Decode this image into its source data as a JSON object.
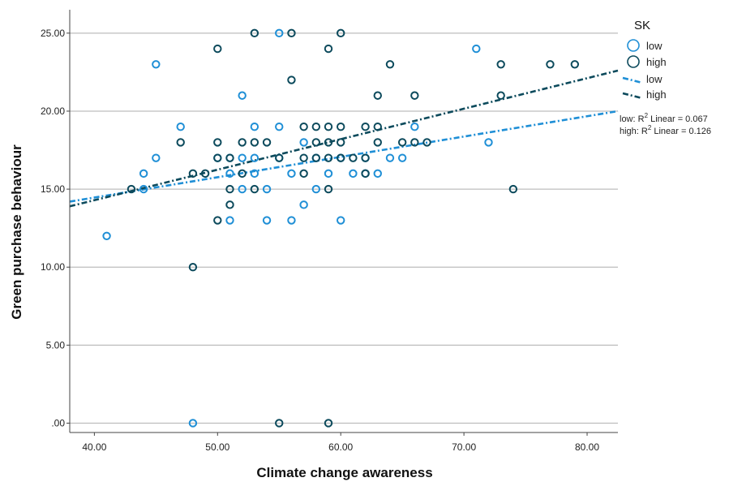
{
  "chart_data": {
    "type": "scatter",
    "xlabel": "Climate change awareness",
    "ylabel": "Green purchase behaviour",
    "xlim": [
      38,
      82.5
    ],
    "ylim": [
      -0.6,
      26.5
    ],
    "xticks": [
      "40.00",
      "50.00",
      "60.00",
      "70.00",
      "80.00"
    ],
    "xtick_values": [
      40,
      50,
      60,
      70,
      80
    ],
    "yticks": [
      ".00",
      "5.00",
      "10.00",
      "15.00",
      "20.00",
      "25.00"
    ],
    "ytick_values": [
      0,
      5,
      10,
      15,
      20,
      25
    ],
    "grid": "horizontal",
    "legend": {
      "title": "SK",
      "placement": "top-right",
      "items": [
        "low",
        "high",
        "low",
        "high"
      ]
    },
    "fit_labels": {
      "low": {
        "prefix": "low: R",
        "sup": "2",
        "suffix": " Linear = 0.067"
      },
      "high": {
        "prefix": "high: R",
        "sup": "2",
        "suffix": " Linear = 0.126"
      }
    },
    "series": [
      {
        "name": "low",
        "color": "#1f8fd6",
        "points": [
          [
            41,
            12
          ],
          [
            44,
            15
          ],
          [
            44,
            16
          ],
          [
            45,
            17
          ],
          [
            45,
            23
          ],
          [
            47,
            19
          ],
          [
            48,
            0
          ],
          [
            50,
            17
          ],
          [
            51,
            13
          ],
          [
            51,
            16
          ],
          [
            51,
            17
          ],
          [
            52,
            15
          ],
          [
            52,
            17
          ],
          [
            52,
            21
          ],
          [
            53,
            16
          ],
          [
            53,
            17
          ],
          [
            53,
            19
          ],
          [
            54,
            13
          ],
          [
            54,
            15
          ],
          [
            55,
            17
          ],
          [
            55,
            19
          ],
          [
            55,
            25
          ],
          [
            56,
            13
          ],
          [
            56,
            16
          ],
          [
            57,
            14
          ],
          [
            57,
            18
          ],
          [
            58,
            15
          ],
          [
            58,
            17
          ],
          [
            59,
            16
          ],
          [
            60,
            13
          ],
          [
            60,
            17
          ],
          [
            61,
            16
          ],
          [
            62,
            16
          ],
          [
            62,
            17
          ],
          [
            63,
            16
          ],
          [
            64,
            17
          ],
          [
            65,
            17
          ],
          [
            66,
            19
          ],
          [
            71,
            24
          ],
          [
            72,
            18
          ]
        ],
        "fit": [
          [
            38,
            14.2
          ],
          [
            82.5,
            20.0
          ]
        ]
      },
      {
        "name": "high",
        "color": "#0c4a5c",
        "points": [
          [
            43,
            15
          ],
          [
            47,
            18
          ],
          [
            48,
            10
          ],
          [
            48,
            16
          ],
          [
            49,
            16
          ],
          [
            50,
            13
          ],
          [
            50,
            17
          ],
          [
            50,
            18
          ],
          [
            50,
            24
          ],
          [
            51,
            14
          ],
          [
            51,
            15
          ],
          [
            51,
            17
          ],
          [
            52,
            16
          ],
          [
            52,
            18
          ],
          [
            53,
            15
          ],
          [
            53,
            18
          ],
          [
            53,
            25
          ],
          [
            54,
            18
          ],
          [
            55,
            0
          ],
          [
            55,
            17
          ],
          [
            56,
            22
          ],
          [
            56,
            25
          ],
          [
            57,
            16
          ],
          [
            57,
            17
          ],
          [
            57,
            19
          ],
          [
            58,
            17
          ],
          [
            58,
            18
          ],
          [
            58,
            19
          ],
          [
            59,
            0
          ],
          [
            59,
            15
          ],
          [
            59,
            17
          ],
          [
            59,
            18
          ],
          [
            59,
            19
          ],
          [
            59,
            24
          ],
          [
            60,
            17
          ],
          [
            60,
            18
          ],
          [
            60,
            19
          ],
          [
            60,
            25
          ],
          [
            61,
            17
          ],
          [
            62,
            16
          ],
          [
            62,
            17
          ],
          [
            62,
            19
          ],
          [
            63,
            18
          ],
          [
            63,
            19
          ],
          [
            63,
            21
          ],
          [
            64,
            23
          ],
          [
            65,
            18
          ],
          [
            66,
            18
          ],
          [
            66,
            21
          ],
          [
            67,
            18
          ],
          [
            73,
            21
          ],
          [
            73,
            23
          ],
          [
            74,
            15
          ],
          [
            77,
            23
          ],
          [
            79,
            23
          ]
        ],
        "fit": [
          [
            38,
            13.9
          ],
          [
            82.5,
            22.6
          ]
        ]
      }
    ]
  }
}
